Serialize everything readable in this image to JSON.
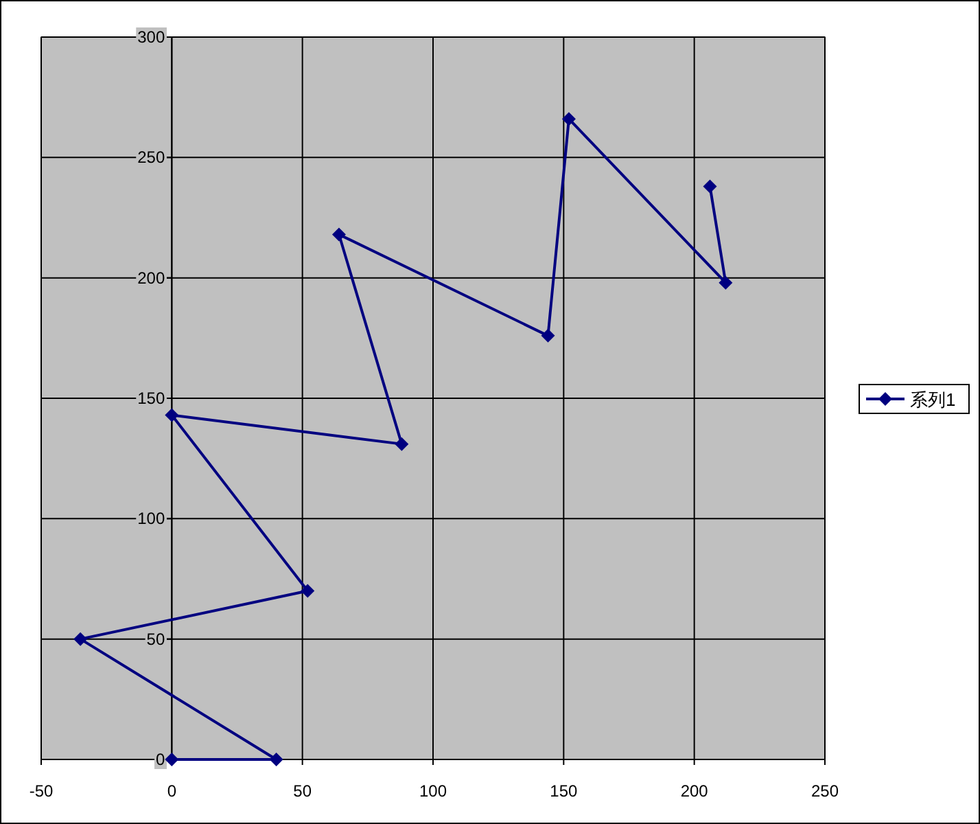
{
  "chart_data": {
    "type": "line",
    "x": [
      0,
      40,
      -35,
      52,
      0,
      88,
      64,
      144,
      152,
      212,
      206
    ],
    "series": [
      {
        "name": "系列1",
        "color": "#000080",
        "values": [
          0,
          0,
          50,
          70,
          143,
          131,
          218,
          176,
          266,
          198,
          238
        ]
      }
    ],
    "xlim": [
      -50,
      250
    ],
    "xticks": [
      -50,
      0,
      50,
      100,
      150,
      200,
      250
    ],
    "ylim": [
      0,
      300
    ],
    "yticks": [
      0,
      50,
      100,
      150,
      200,
      250,
      300
    ],
    "grid": true,
    "legend": "right",
    "marker": "diamond",
    "line_style": "solid"
  }
}
